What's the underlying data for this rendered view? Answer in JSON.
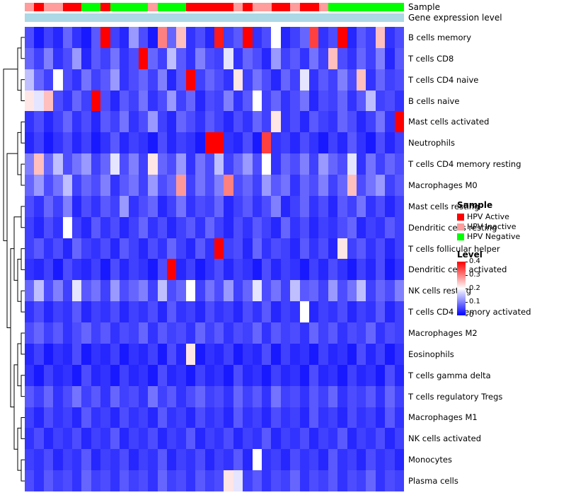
{
  "annotation": {
    "sample_label": "Sample",
    "gene_label": "Gene expression level",
    "gene_bar_color": "#ADD8E6"
  },
  "legend": {
    "sample_title": "Sample",
    "sample_items": [
      {
        "label": "HPV Active",
        "color": "#FF0000"
      },
      {
        "label": "HPV Inactive",
        "color": "#FF9C9C"
      },
      {
        "label": "HPV Negative",
        "color": "#00FF00"
      }
    ],
    "level_title": "Level",
    "level_ticks": [
      "0.4",
      "0.3",
      "0.2",
      "0.1",
      "0"
    ]
  },
  "chart_data": {
    "type": "heatmap",
    "title": "",
    "value_range": [
      0,
      0.4
    ],
    "colormap": [
      "#0000FF",
      "#FFFFFF",
      "#FF0000"
    ],
    "columns_count": 40,
    "rows": [
      "B cells memory",
      "T cells CD8",
      "T cells CD4 naive",
      "B cells naive",
      "Mast cells activated",
      "Neutrophils",
      "T cells CD4 memory resting",
      "Macrophages M0",
      "Mast cells resting",
      "Dendritic cells resting",
      "T cells follicular helper",
      "Dendritic cells activated",
      "NK cells resting",
      "T cells CD4 memory activated",
      "Macrophages M2",
      "Eosinophils",
      "T cells gamma delta",
      "T cells regulatory Tregs",
      "Macrophages M1",
      "NK cells activated",
      "Monocytes",
      "Plasma cells"
    ],
    "column_annotation": {
      "name": "Sample",
      "colors": {
        "HPV Active": "#FF0000",
        "HPV Inactive": "#FF9C9C",
        "HPV Negative": "#00FF00"
      },
      "values": [
        "HPV Inactive",
        "HPV Active",
        "HPV Inactive",
        "HPV Inactive",
        "HPV Active",
        "HPV Active",
        "HPV Negative",
        "HPV Negative",
        "HPV Active",
        "HPV Negative",
        "HPV Negative",
        "HPV Negative",
        "HPV Negative",
        "HPV Inactive",
        "HPV Negative",
        "HPV Negative",
        "HPV Negative",
        "HPV Active",
        "HPV Active",
        "HPV Active",
        "HPV Active",
        "HPV Active",
        "HPV Inactive",
        "HPV Active",
        "HPV Inactive",
        "HPV Inactive",
        "HPV Active",
        "HPV Active",
        "HPV Inactive",
        "HPV Active",
        "HPV Active",
        "HPV Inactive",
        "HPV Negative",
        "HPV Negative",
        "HPV Negative",
        "HPV Negative",
        "HPV Negative",
        "HPV Negative",
        "HPV Negative",
        "HPV Negative"
      ]
    },
    "matrix": [
      [
        0.06,
        0.02,
        0.05,
        0.03,
        0.08,
        0.04,
        0.02,
        0.07,
        0.4,
        0.05,
        0.03,
        0.12,
        0.06,
        0.02,
        0.3,
        0.08,
        0.25,
        0.04,
        0.06,
        0.03,
        0.38,
        0.05,
        0.07,
        0.4,
        0.04,
        0.06,
        0.2,
        0.03,
        0.05,
        0.08,
        0.35,
        0.04,
        0.06,
        0.4,
        0.03,
        0.07,
        0.05,
        0.25,
        0.04,
        0.06
      ],
      [
        0.08,
        0.05,
        0.1,
        0.04,
        0.06,
        0.12,
        0.03,
        0.07,
        0.05,
        0.09,
        0.04,
        0.06,
        0.4,
        0.08,
        0.05,
        0.15,
        0.07,
        0.04,
        0.1,
        0.06,
        0.05,
        0.18,
        0.04,
        0.08,
        0.06,
        0.03,
        0.12,
        0.05,
        0.07,
        0.04,
        0.09,
        0.05,
        0.25,
        0.06,
        0.04,
        0.08,
        0.05,
        0.1,
        0.03,
        0.07
      ],
      [
        0.15,
        0.08,
        0.05,
        0.2,
        0.06,
        0.04,
        0.09,
        0.05,
        0.07,
        0.12,
        0.04,
        0.06,
        0.08,
        0.05,
        0.1,
        0.03,
        0.07,
        0.4,
        0.05,
        0.08,
        0.06,
        0.04,
        0.22,
        0.05,
        0.09,
        0.06,
        0.03,
        0.08,
        0.05,
        0.18,
        0.04,
        0.07,
        0.05,
        0.1,
        0.06,
        0.25,
        0.04,
        0.08,
        0.05,
        0.06
      ],
      [
        0.22,
        0.18,
        0.25,
        0.06,
        0.04,
        0.08,
        0.05,
        0.4,
        0.06,
        0.03,
        0.07,
        0.05,
        0.09,
        0.04,
        0.06,
        0.12,
        0.05,
        0.08,
        0.03,
        0.06,
        0.05,
        0.1,
        0.04,
        0.07,
        0.2,
        0.05,
        0.08,
        0.04,
        0.06,
        0.09,
        0.03,
        0.06,
        0.05,
        0.08,
        0.04,
        0.07,
        0.15,
        0.05,
        0.06,
        0.04
      ],
      [
        0.04,
        0.06,
        0.03,
        0.05,
        0.08,
        0.04,
        0.06,
        0.03,
        0.07,
        0.05,
        0.09,
        0.04,
        0.06,
        0.12,
        0.05,
        0.03,
        0.08,
        0.06,
        0.04,
        0.07,
        0.05,
        0.03,
        0.06,
        0.04,
        0.08,
        0.05,
        0.22,
        0.04,
        0.06,
        0.03,
        0.07,
        0.05,
        0.04,
        0.08,
        0.06,
        0.03,
        0.05,
        0.09,
        0.04,
        0.4
      ],
      [
        0.03,
        0.05,
        0.02,
        0.04,
        0.06,
        0.03,
        0.05,
        0.02,
        0.04,
        0.07,
        0.03,
        0.05,
        0.04,
        0.02,
        0.06,
        0.03,
        0.05,
        0.04,
        0.02,
        0.4,
        0.4,
        0.04,
        0.03,
        0.06,
        0.02,
        0.35,
        0.04,
        0.05,
        0.03,
        0.06,
        0.04,
        0.02,
        0.05,
        0.03,
        0.07,
        0.04,
        0.02,
        0.06,
        0.03,
        0.05
      ],
      [
        0.1,
        0.25,
        0.08,
        0.15,
        0.06,
        0.09,
        0.12,
        0.05,
        0.08,
        0.18,
        0.06,
        0.1,
        0.05,
        0.22,
        0.08,
        0.06,
        0.12,
        0.04,
        0.09,
        0.06,
        0.15,
        0.05,
        0.08,
        0.12,
        0.06,
        0.2,
        0.04,
        0.08,
        0.06,
        0.1,
        0.05,
        0.12,
        0.08,
        0.06,
        0.18,
        0.04,
        0.09,
        0.05,
        0.08,
        0.06
      ],
      [
        0.08,
        0.12,
        0.06,
        0.09,
        0.15,
        0.05,
        0.08,
        0.06,
        0.1,
        0.04,
        0.07,
        0.09,
        0.05,
        0.12,
        0.06,
        0.08,
        0.28,
        0.05,
        0.09,
        0.06,
        0.1,
        0.3,
        0.06,
        0.08,
        0.05,
        0.12,
        0.07,
        0.09,
        0.04,
        0.08,
        0.06,
        0.1,
        0.05,
        0.08,
        0.25,
        0.06,
        0.09,
        0.12,
        0.05,
        0.07
      ],
      [
        0.06,
        0.04,
        0.08,
        0.05,
        0.1,
        0.03,
        0.06,
        0.04,
        0.07,
        0.05,
        0.12,
        0.04,
        0.06,
        0.08,
        0.03,
        0.05,
        0.09,
        0.04,
        0.06,
        0.05,
        0.08,
        0.03,
        0.05,
        0.07,
        0.04,
        0.06,
        0.1,
        0.03,
        0.05,
        0.08,
        0.04,
        0.06,
        0.03,
        0.07,
        0.05,
        0.09,
        0.04,
        0.06,
        0.03,
        0.05
      ],
      [
        0.05,
        0.03,
        0.06,
        0.04,
        0.2,
        0.05,
        0.03,
        0.07,
        0.04,
        0.06,
        0.03,
        0.05,
        0.08,
        0.04,
        0.06,
        0.03,
        0.05,
        0.07,
        0.04,
        0.08,
        0.05,
        0.03,
        0.06,
        0.04,
        0.07,
        0.05,
        0.03,
        0.08,
        0.04,
        0.06,
        0.03,
        0.05,
        0.04,
        0.06,
        0.08,
        0.03,
        0.05,
        0.04,
        0.07,
        0.05
      ],
      [
        0.05,
        0.07,
        0.04,
        0.06,
        0.03,
        0.08,
        0.05,
        0.04,
        0.06,
        0.03,
        0.07,
        0.05,
        0.03,
        0.06,
        0.04,
        0.08,
        0.05,
        0.03,
        0.07,
        0.04,
        0.4,
        0.05,
        0.06,
        0.03,
        0.08,
        0.04,
        0.06,
        0.05,
        0.03,
        0.07,
        0.04,
        0.06,
        0.03,
        0.22,
        0.05,
        0.07,
        0.04,
        0.06,
        0.03,
        0.05
      ],
      [
        0.04,
        0.03,
        0.05,
        0.02,
        0.06,
        0.04,
        0.03,
        0.05,
        0.02,
        0.06,
        0.03,
        0.05,
        0.04,
        0.02,
        0.06,
        0.4,
        0.03,
        0.05,
        0.02,
        0.04,
        0.06,
        0.03,
        0.05,
        0.04,
        0.02,
        0.06,
        0.03,
        0.05,
        0.04,
        0.02,
        0.05,
        0.03,
        0.06,
        0.04,
        0.02,
        0.05,
        0.03,
        0.06,
        0.02,
        0.04
      ],
      [
        0.08,
        0.15,
        0.06,
        0.1,
        0.05,
        0.18,
        0.07,
        0.09,
        0.05,
        0.12,
        0.06,
        0.08,
        0.1,
        0.05,
        0.15,
        0.06,
        0.08,
        0.2,
        0.05,
        0.09,
        0.06,
        0.12,
        0.05,
        0.08,
        0.18,
        0.06,
        0.09,
        0.05,
        0.15,
        0.07,
        0.08,
        0.05,
        0.12,
        0.06,
        0.09,
        0.15,
        0.05,
        0.08,
        0.06,
        0.1
      ],
      [
        0.04,
        0.06,
        0.03,
        0.05,
        0.04,
        0.07,
        0.03,
        0.05,
        0.04,
        0.06,
        0.03,
        0.05,
        0.04,
        0.06,
        0.03,
        0.07,
        0.04,
        0.05,
        0.03,
        0.06,
        0.04,
        0.05,
        0.03,
        0.06,
        0.04,
        0.07,
        0.03,
        0.05,
        0.04,
        0.2,
        0.03,
        0.05,
        0.04,
        0.06,
        0.03,
        0.05,
        0.04,
        0.07,
        0.03,
        0.05
      ],
      [
        0.06,
        0.08,
        0.05,
        0.07,
        0.04,
        0.06,
        0.08,
        0.05,
        0.07,
        0.04,
        0.06,
        0.05,
        0.08,
        0.04,
        0.07,
        0.05,
        0.06,
        0.04,
        0.08,
        0.05,
        0.07,
        0.04,
        0.06,
        0.05,
        0.08,
        0.04,
        0.07,
        0.05,
        0.06,
        0.04,
        0.08,
        0.05,
        0.07,
        0.04,
        0.06,
        0.05,
        0.08,
        0.04,
        0.06,
        0.05
      ],
      [
        0.03,
        0.05,
        0.02,
        0.04,
        0.03,
        0.06,
        0.02,
        0.04,
        0.03,
        0.05,
        0.02,
        0.04,
        0.03,
        0.05,
        0.02,
        0.06,
        0.03,
        0.22,
        0.02,
        0.04,
        0.03,
        0.05,
        0.02,
        0.04,
        0.03,
        0.06,
        0.02,
        0.05,
        0.03,
        0.04,
        0.02,
        0.05,
        0.03,
        0.04,
        0.02,
        0.06,
        0.03,
        0.05,
        0.02,
        0.04
      ],
      [
        0.04,
        0.02,
        0.05,
        0.03,
        0.04,
        0.02,
        0.06,
        0.03,
        0.04,
        0.02,
        0.05,
        0.03,
        0.04,
        0.02,
        0.06,
        0.03,
        0.04,
        0.02,
        0.05,
        0.03,
        0.04,
        0.02,
        0.06,
        0.03,
        0.04,
        0.02,
        0.05,
        0.03,
        0.04,
        0.02,
        0.06,
        0.03,
        0.04,
        0.02,
        0.05,
        0.03,
        0.04,
        0.02,
        0.06,
        0.03
      ],
      [
        0.07,
        0.05,
        0.08,
        0.04,
        0.06,
        0.09,
        0.05,
        0.07,
        0.04,
        0.08,
        0.05,
        0.06,
        0.04,
        0.09,
        0.05,
        0.07,
        0.04,
        0.06,
        0.08,
        0.05,
        0.06,
        0.04,
        0.08,
        0.05,
        0.07,
        0.04,
        0.09,
        0.05,
        0.06,
        0.04,
        0.07,
        0.05,
        0.08,
        0.04,
        0.06,
        0.05,
        0.07,
        0.04,
        0.08,
        0.05
      ],
      [
        0.05,
        0.03,
        0.06,
        0.04,
        0.05,
        0.03,
        0.07,
        0.04,
        0.05,
        0.03,
        0.06,
        0.04,
        0.05,
        0.03,
        0.07,
        0.04,
        0.05,
        0.03,
        0.06,
        0.04,
        0.05,
        0.03,
        0.07,
        0.04,
        0.05,
        0.03,
        0.06,
        0.04,
        0.05,
        0.03,
        0.07,
        0.04,
        0.05,
        0.03,
        0.06,
        0.04,
        0.05,
        0.03,
        0.07,
        0.04
      ],
      [
        0.04,
        0.06,
        0.03,
        0.05,
        0.04,
        0.06,
        0.03,
        0.05,
        0.04,
        0.07,
        0.03,
        0.05,
        0.04,
        0.06,
        0.03,
        0.05,
        0.04,
        0.07,
        0.03,
        0.05,
        0.04,
        0.06,
        0.03,
        0.05,
        0.04,
        0.07,
        0.03,
        0.05,
        0.04,
        0.06,
        0.03,
        0.05,
        0.04,
        0.07,
        0.03,
        0.05,
        0.04,
        0.06,
        0.03,
        0.05
      ],
      [
        0.05,
        0.04,
        0.06,
        0.03,
        0.05,
        0.04,
        0.07,
        0.03,
        0.05,
        0.04,
        0.06,
        0.03,
        0.05,
        0.04,
        0.07,
        0.03,
        0.05,
        0.04,
        0.06,
        0.03,
        0.05,
        0.04,
        0.07,
        0.03,
        0.2,
        0.04,
        0.05,
        0.03,
        0.06,
        0.04,
        0.05,
        0.03,
        0.07,
        0.04,
        0.05,
        0.03,
        0.06,
        0.04,
        0.05,
        0.03
      ],
      [
        0.06,
        0.04,
        0.07,
        0.05,
        0.06,
        0.04,
        0.08,
        0.05,
        0.06,
        0.04,
        0.07,
        0.05,
        0.06,
        0.04,
        0.08,
        0.05,
        0.06,
        0.04,
        0.07,
        0.05,
        0.06,
        0.22,
        0.18,
        0.05,
        0.07,
        0.04,
        0.06,
        0.05,
        0.08,
        0.04,
        0.06,
        0.05,
        0.07,
        0.04,
        0.06,
        0.05,
        0.08,
        0.04,
        0.06,
        0.05
      ]
    ]
  }
}
